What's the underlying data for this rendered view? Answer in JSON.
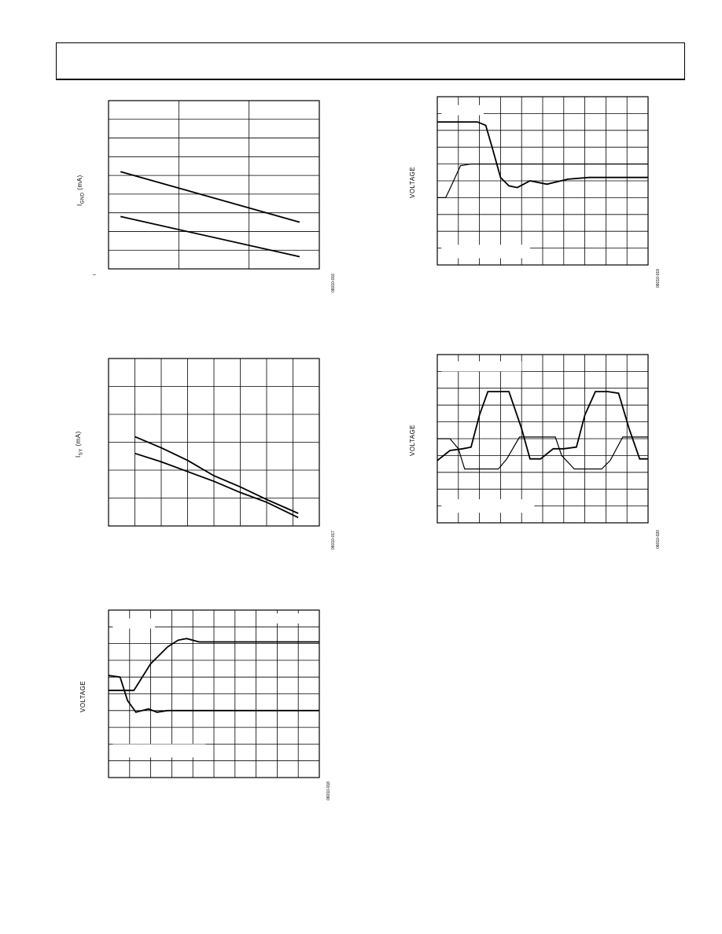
{
  "header": {
    "text": ""
  },
  "chart_data": [
    {
      "id": "c1",
      "type": "line",
      "ylabel_main": "I",
      "ylabel_sub": "GND",
      "ylabel_tail": " (mA)",
      "xlabel": "",
      "x_tick_label": "–",
      "figure_id": "06010-016",
      "xlim": [
        0,
        3
      ],
      "ylim": [
        0,
        9
      ],
      "x_divisions": 3,
      "y_divisions": 9,
      "series": [
        {
          "x": [
            0.17,
            2.72
          ],
          "y": [
            5.2,
            2.5
          ]
        },
        {
          "x": [
            0.17,
            2.72
          ],
          "y": [
            2.8,
            0.65
          ]
        }
      ]
    },
    {
      "id": "c2",
      "type": "line",
      "ylabel_main": "I",
      "ylabel_sub": "SY",
      "ylabel_tail": " (mA)",
      "xlabel": "",
      "figure_id": "06010-017",
      "xlim": [
        0,
        8
      ],
      "ylim": [
        0,
        6
      ],
      "x_divisions": 8,
      "y_divisions": 6,
      "series": [
        {
          "x": [
            1.0,
            2.0,
            3.0,
            4.0,
            5.0,
            6.0,
            7.2
          ],
          "y": [
            3.2,
            2.8,
            2.35,
            1.8,
            1.4,
            0.95,
            0.45
          ]
        },
        {
          "x": [
            1.0,
            2.0,
            3.0,
            4.0,
            5.0,
            6.0,
            7.2
          ],
          "y": [
            2.6,
            2.3,
            1.95,
            1.6,
            1.2,
            0.85,
            0.3
          ]
        }
      ]
    },
    {
      "id": "c3",
      "type": "line",
      "ylabel_main": "VOLTAGE",
      "figure_id": "06010-018",
      "xlim": [
        0,
        10
      ],
      "ylim": [
        0,
        10
      ],
      "x_divisions": 10,
      "y_divisions": 10,
      "series": [
        {
          "x": [
            0,
            0.5,
            1.2,
            2.0,
            2.8,
            3.3,
            3.7,
            4.3,
            10
          ],
          "y": [
            5.2,
            5.2,
            5.2,
            6.8,
            7.8,
            8.2,
            8.3,
            8.1,
            8.1
          ]
        },
        {
          "x": [
            0,
            0.55,
            0.9,
            1.3,
            1.6,
            1.9,
            2.3,
            2.8,
            10
          ],
          "y": [
            6.1,
            6.0,
            4.6,
            3.9,
            4.0,
            4.1,
            3.9,
            4.0,
            4.0
          ]
        }
      ]
    },
    {
      "id": "c4",
      "type": "line",
      "ylabel_main": "VOLTAGE",
      "figure_id": "06010-019",
      "xlim": [
        0,
        10
      ],
      "ylim": [
        0,
        10
      ],
      "x_divisions": 10,
      "y_divisions": 10,
      "series": [
        {
          "x": [
            0,
            1.9,
            2.3,
            2.6,
            3.0,
            3.4,
            3.8,
            4.4,
            5.2,
            6.2,
            7.2,
            10
          ],
          "y": [
            8.5,
            8.5,
            8.3,
            7.0,
            5.2,
            4.7,
            4.6,
            5.0,
            4.8,
            5.1,
            5.2,
            5.2
          ]
        },
        {
          "x": [
            0,
            0.4,
            0.7,
            1.1,
            1.6,
            2.3,
            3.0,
            10
          ],
          "y": [
            4.0,
            4.0,
            4.8,
            5.9,
            6.0,
            6.0,
            6.0,
            6.0
          ]
        }
      ]
    },
    {
      "id": "c5",
      "type": "line",
      "ylabel_main": "VOLTAGE",
      "figure_id": "06010-020",
      "xlim": [
        0,
        10
      ],
      "ylim": [
        0,
        10
      ],
      "x_divisions": 10,
      "y_divisions": 10,
      "series": [
        {
          "x": [
            0,
            0.6,
            1.2,
            1.6,
            2.0,
            2.4,
            2.9,
            3.4,
            4.0,
            4.4,
            4.9,
            5.5,
            6.0,
            6.6,
            7.0,
            7.5,
            8.1,
            8.6,
            9.1,
            9.6,
            10
          ],
          "y": [
            3.7,
            4.3,
            4.4,
            4.5,
            6.4,
            7.8,
            7.8,
            7.8,
            5.6,
            3.8,
            3.8,
            4.4,
            4.4,
            4.5,
            6.4,
            7.8,
            7.8,
            7.7,
            5.6,
            3.8,
            3.8
          ]
        },
        {
          "x": [
            0,
            0.6,
            1.0,
            1.3,
            2.0,
            2.9,
            3.3,
            3.9,
            4.2,
            5.6,
            5.9,
            6.5,
            7.2,
            7.8,
            8.2,
            8.8,
            9.2,
            10
          ],
          "y": [
            5.0,
            5.0,
            4.4,
            3.2,
            3.2,
            3.2,
            3.8,
            5.1,
            5.1,
            5.1,
            4.0,
            3.2,
            3.2,
            3.2,
            3.7,
            5.1,
            5.1,
            5.1
          ]
        }
      ]
    }
  ]
}
